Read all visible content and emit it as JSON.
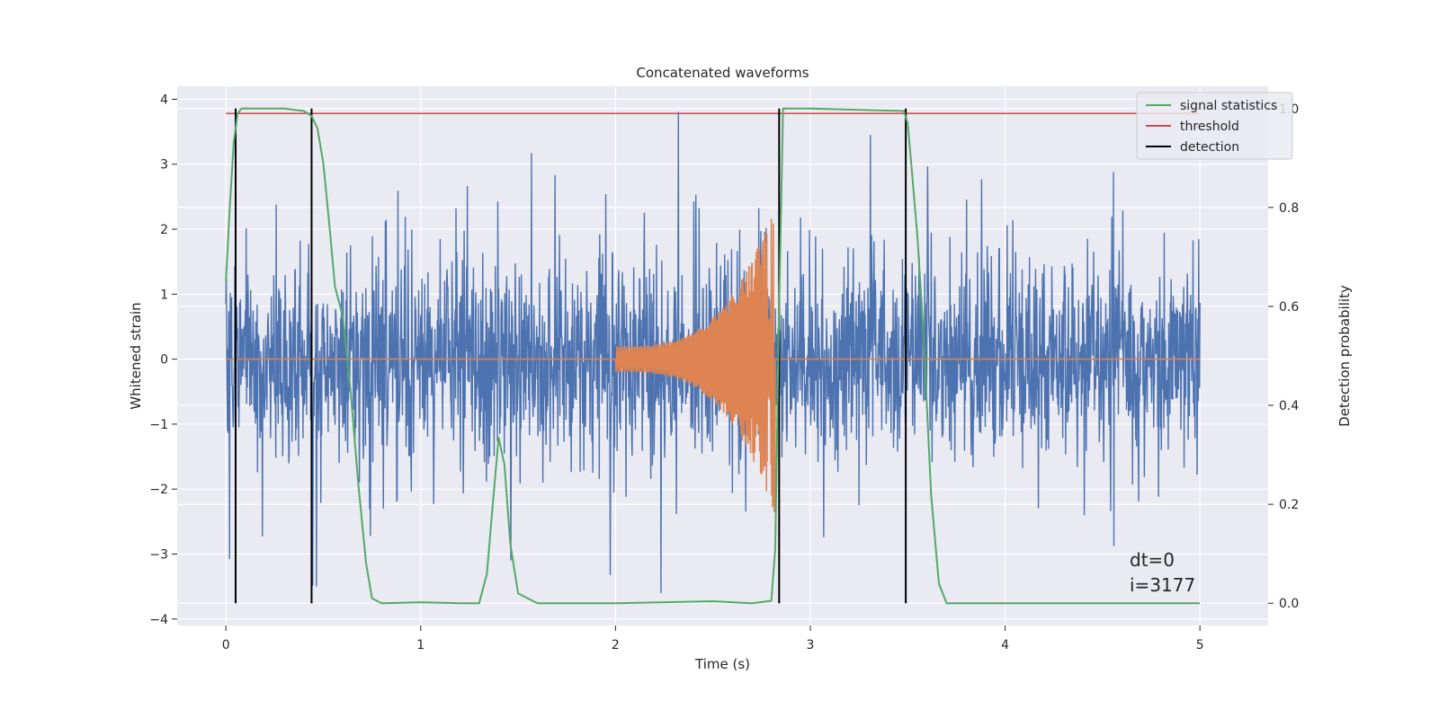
{
  "chart_data": {
    "type": "line",
    "title": "Concatenated waveforms",
    "xlabel": "Time (s)",
    "ylabel": "Whitened strain",
    "ylabel_right": "Detection probability",
    "xlim": [
      -0.25,
      5.35
    ],
    "ylim": [
      -4.1,
      4.2
    ],
    "ylim_right": [
      -0.045,
      1.045
    ],
    "xticks": [
      0,
      1,
      2,
      3,
      4,
      5
    ],
    "yticks": [
      -4,
      -3,
      -2,
      -1,
      0,
      1,
      2,
      3,
      4
    ],
    "yticks_right": [
      0.0,
      0.2,
      0.4,
      0.6,
      0.8,
      1.0
    ],
    "xtick_labels": [
      "0",
      "1",
      "2",
      "3",
      "4",
      "5"
    ],
    "ytick_labels": [
      "−4",
      "−3",
      "−2",
      "−1",
      "0",
      "1",
      "2",
      "3",
      "4"
    ],
    "ytick_right_labels": [
      "0.0",
      "0.2",
      "0.4",
      "0.6",
      "0.8",
      "1.0"
    ],
    "grid": true,
    "legend_position": "top-right",
    "noise": {
      "x_range": [
        0,
        5
      ],
      "amplitude_typical": 1.0,
      "peak_range": [
        -3.6,
        3.85
      ],
      "color": "#4c72b0"
    },
    "chirp": {
      "start": 2.0,
      "end": 2.82,
      "amplitude_start": 0.2,
      "amplitude_end": 2.4,
      "color": "#dd8452"
    },
    "signal_statistics": {
      "name": "signal statistics",
      "color": "#55a868",
      "x": [
        0.0,
        0.02,
        0.04,
        0.06,
        0.08,
        0.1,
        0.2,
        0.3,
        0.4,
        0.44,
        0.47,
        0.5,
        0.53,
        0.56,
        0.6,
        0.64,
        0.68,
        0.72,
        0.75,
        0.8,
        1.0,
        1.2,
        1.3,
        1.34,
        1.37,
        1.4,
        1.43,
        1.46,
        1.5,
        1.6,
        2.0,
        2.5,
        2.7,
        2.8,
        2.82,
        2.84,
        2.86,
        3.0,
        3.48,
        3.5,
        3.52,
        3.55,
        3.58,
        3.62,
        3.66,
        3.7,
        4.0,
        4.5,
        5.0
      ],
      "y": [
        0.65,
        0.8,
        0.93,
        0.99,
        1.0,
        1.0,
        1.0,
        1.0,
        0.995,
        0.985,
        0.96,
        0.89,
        0.77,
        0.64,
        0.58,
        0.43,
        0.24,
        0.08,
        0.01,
        0.0,
        0.002,
        0.0,
        0.0,
        0.06,
        0.2,
        0.335,
        0.28,
        0.12,
        0.02,
        0.0,
        0.0,
        0.004,
        0.0,
        0.005,
        0.11,
        0.6,
        1.0,
        1.0,
        0.995,
        0.97,
        0.88,
        0.74,
        0.55,
        0.22,
        0.04,
        0.0,
        0.0,
        0.0,
        0.0
      ]
    },
    "threshold": {
      "name": "threshold",
      "value": 0.99,
      "x_range": [
        0,
        5
      ],
      "color": "#c44e52"
    },
    "detections": {
      "name": "detection",
      "x": [
        0.05,
        0.44,
        2.84,
        3.49
      ],
      "y_range": [
        0.0,
        1.0
      ],
      "color": "#000000"
    },
    "annotations": [
      "dt=0",
      "i=3177"
    ]
  }
}
